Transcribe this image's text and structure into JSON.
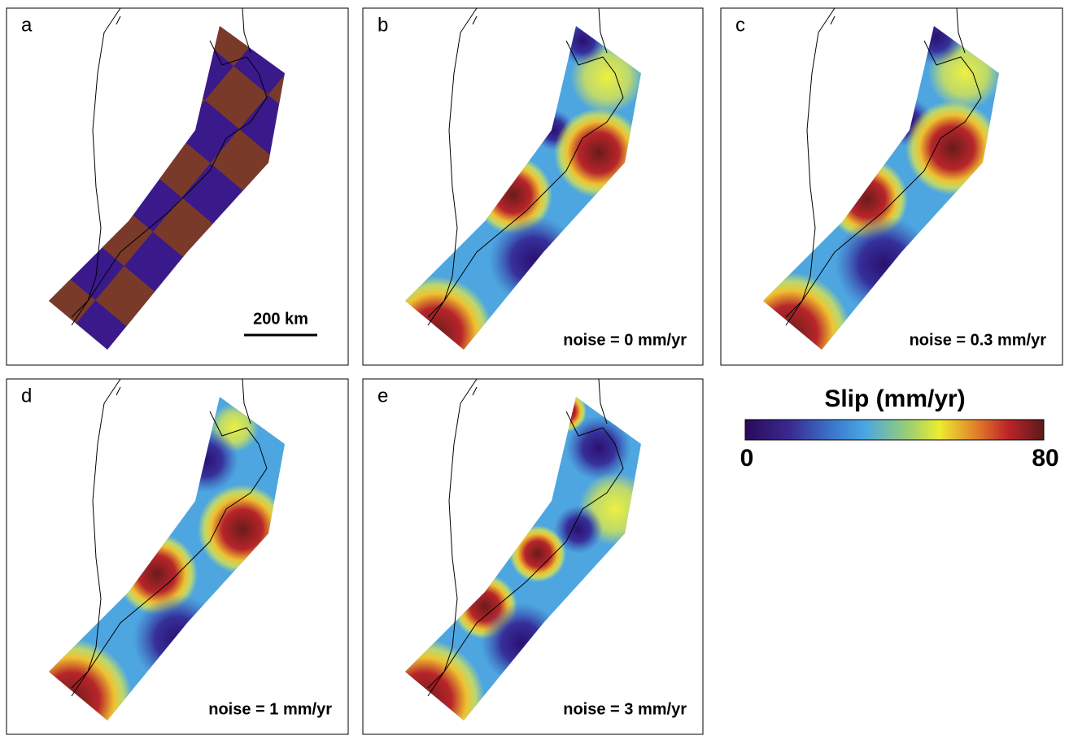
{
  "panels": [
    {
      "label": "a",
      "scale_bar": "200 km"
    },
    {
      "label": "b",
      "note": "noise = 0 mm/yr"
    },
    {
      "label": "c",
      "note": "noise = 0.3 mm/yr"
    },
    {
      "label": "d",
      "note": "noise = 1 mm/yr"
    },
    {
      "label": "e",
      "note": "noise = 3 mm/yr"
    }
  ],
  "colorbar": {
    "title": "Slip (mm/yr)",
    "min": 0,
    "max": 80
  }
}
